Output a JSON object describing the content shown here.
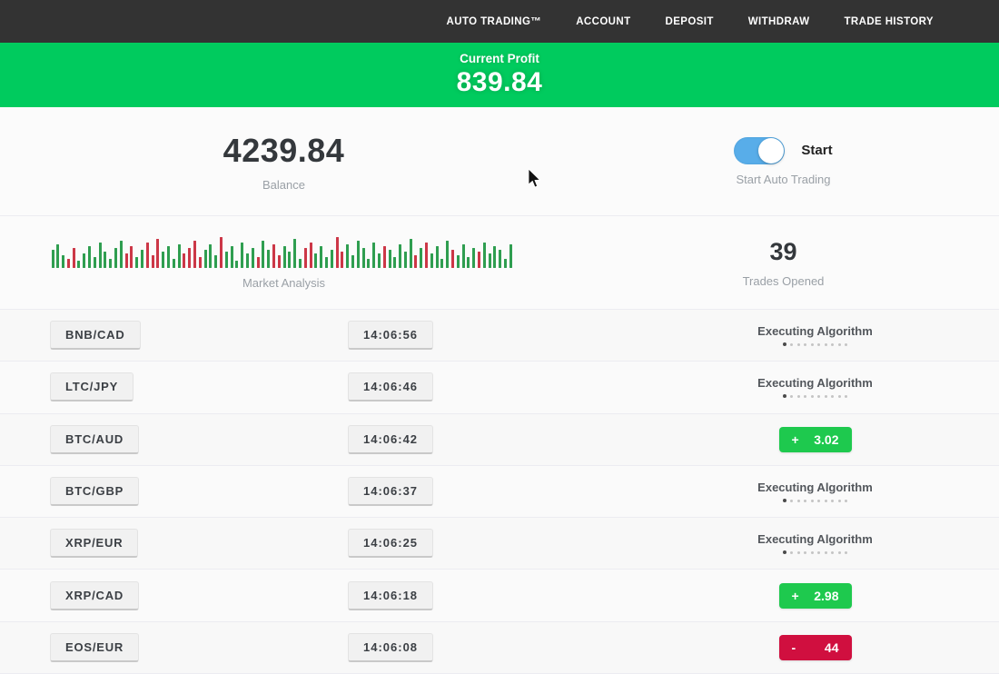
{
  "nav": {
    "items": [
      "AUTO TRADING™",
      "ACCOUNT",
      "DEPOSIT",
      "WITHDRAW",
      "TRADE HISTORY"
    ]
  },
  "profit_banner": {
    "label": "Current Profit",
    "value": "839.84",
    "color": "#00cb5e"
  },
  "stats": {
    "balance": {
      "value": "4239.84",
      "label": "Balance"
    },
    "auto_trading": {
      "toggle_label": "Start",
      "caption": "Start Auto Trading",
      "toggle_on": true,
      "toggle_color": "#58ade9"
    },
    "market_analysis": {
      "label": "Market Analysis",
      "bars": [
        "20g",
        "26g",
        "14g",
        "10r",
        "22r",
        "8g",
        "16g",
        "24g",
        "12g",
        "28g",
        "18g",
        "10g",
        "22g",
        "30g",
        "16r",
        "24r",
        "12g",
        "20g",
        "28r",
        "14r",
        "32r",
        "18g",
        "24g",
        "10g",
        "26g",
        "16r",
        "22r",
        "30r",
        "12r",
        "20g",
        "26g",
        "14g",
        "34r",
        "18g",
        "24g",
        "8g",
        "28g",
        "16g",
        "22g",
        "12r",
        "30g",
        "20g",
        "26r",
        "14r",
        "24g",
        "18g",
        "32g",
        "10g",
        "22r",
        "28r",
        "16g",
        "24g",
        "12g",
        "20g",
        "34r",
        "18r",
        "26g",
        "14g",
        "30g",
        "22g",
        "10g",
        "28g",
        "16g",
        "24r",
        "20g",
        "12g",
        "26g",
        "18g",
        "32g",
        "14r",
        "22g",
        "28r",
        "16g",
        "24g",
        "10g",
        "30g",
        "20r",
        "14g",
        "26g",
        "12g",
        "22g",
        "18r",
        "28g",
        "16g",
        "24g",
        "20g",
        "10g",
        "26g"
      ]
    },
    "trades_opened": {
      "value": "39",
      "label": "Trades Opened"
    }
  },
  "executing": {
    "label": "Executing Algorithm",
    "dots": 10
  },
  "status_colors": {
    "profit": "#1ec94e",
    "loss": "#d00f3f"
  },
  "trades": [
    {
      "pair": "BNB/CAD",
      "time": "14:06:56",
      "type": "executing"
    },
    {
      "pair": "LTC/JPY",
      "time": "14:06:46",
      "type": "executing"
    },
    {
      "pair": "BTC/AUD",
      "time": "14:06:42",
      "type": "profit",
      "sign": "+",
      "value": "3.02"
    },
    {
      "pair": "BTC/GBP",
      "time": "14:06:37",
      "type": "executing"
    },
    {
      "pair": "XRP/EUR",
      "time": "14:06:25",
      "type": "executing"
    },
    {
      "pair": "XRP/CAD",
      "time": "14:06:18",
      "type": "profit",
      "sign": "+",
      "value": "2.98"
    },
    {
      "pair": "EOS/EUR",
      "time": "14:06:08",
      "type": "loss",
      "sign": "-",
      "value": "44"
    }
  ]
}
